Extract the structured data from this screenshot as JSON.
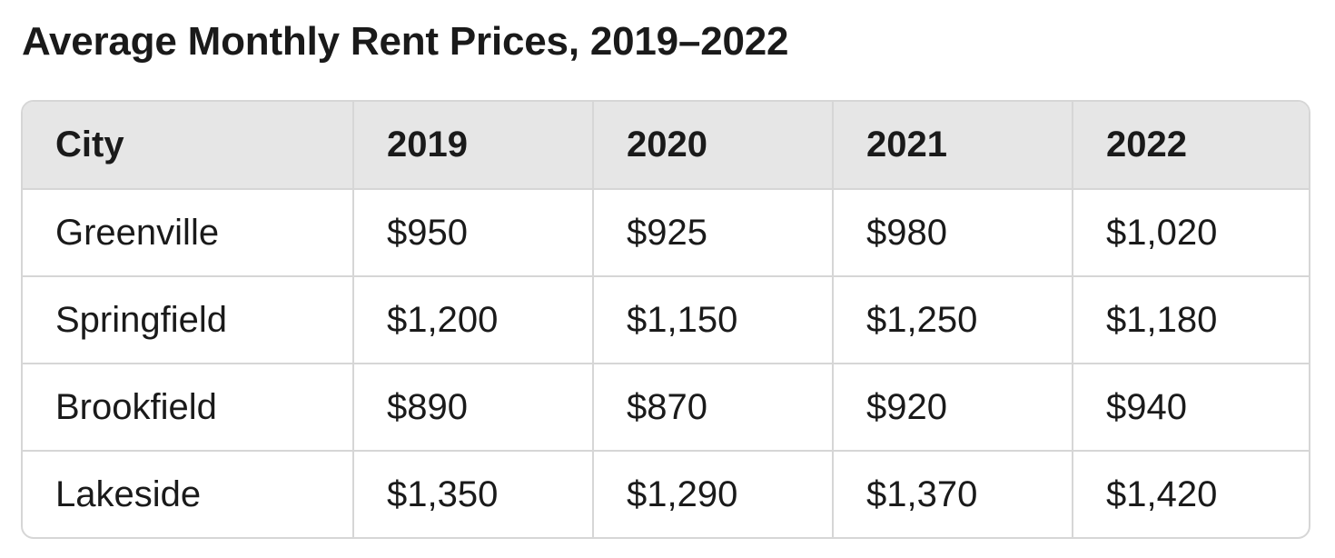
{
  "chart_data": {
    "type": "table",
    "title": "Average Monthly Rent Prices, 2019–2022",
    "columns": [
      "City",
      "2019",
      "2020",
      "2021",
      "2022"
    ],
    "rows": [
      [
        "Greenville",
        "$950",
        "$925",
        "$980",
        "$1,020"
      ],
      [
        "Springfield",
        "$1,200",
        "$1,150",
        "$1,250",
        "$1,180"
      ],
      [
        "Brookfield",
        "$890",
        "$870",
        "$920",
        "$940"
      ],
      [
        "Lakeside",
        "$1,350",
        "$1,290",
        "$1,370",
        "$1,420"
      ]
    ]
  }
}
